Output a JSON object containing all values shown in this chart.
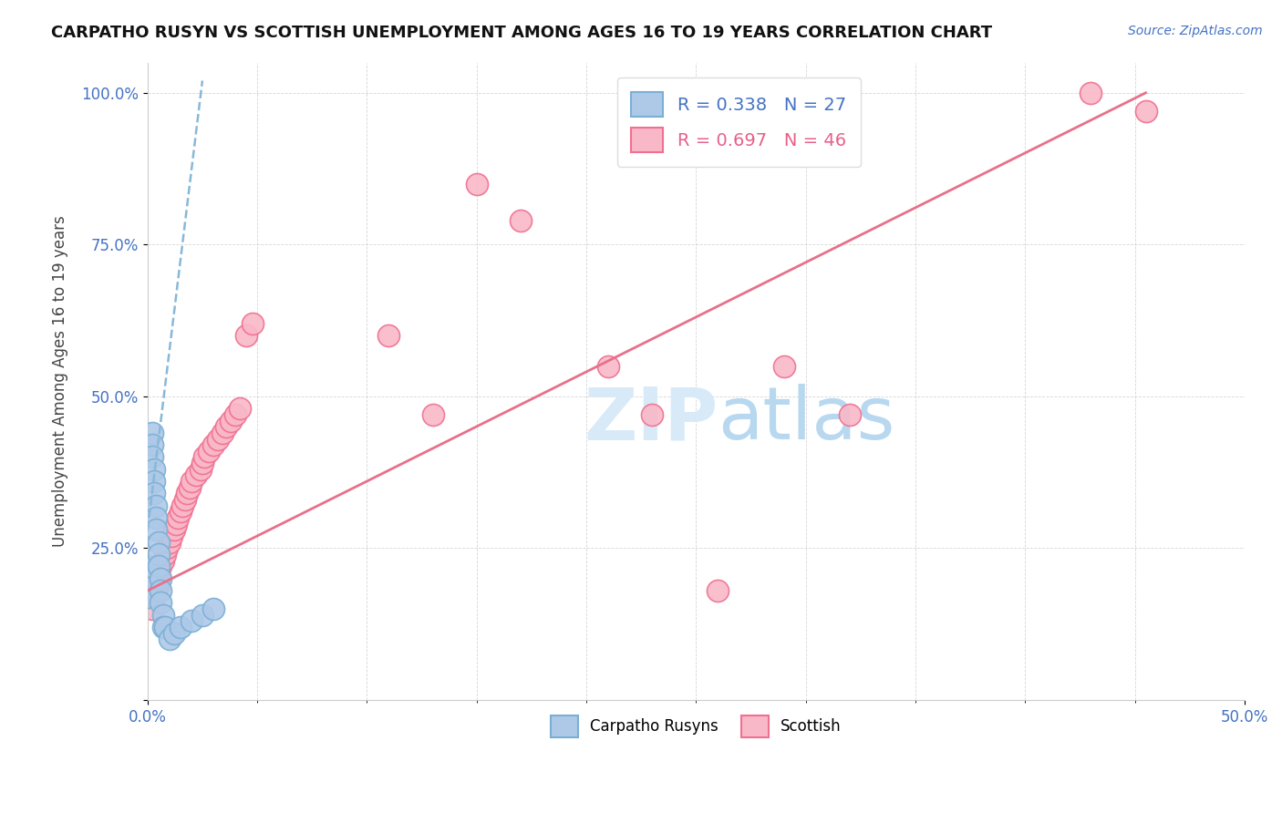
{
  "title": "CARPATHO RUSYN VS SCOTTISH UNEMPLOYMENT AMONG AGES 16 TO 19 YEARS CORRELATION CHART",
  "source_text": "Source: ZipAtlas.com",
  "xmin": 0.0,
  "xmax": 0.5,
  "ymin": 0.0,
  "ymax": 1.05,
  "blue_R": 0.338,
  "blue_N": 27,
  "pink_R": 0.697,
  "pink_N": 46,
  "blue_color": "#aec9e8",
  "pink_color": "#f9b8c8",
  "blue_edge": "#7aafd4",
  "pink_edge": "#f07090",
  "blue_trend_color": "#88b8d8",
  "pink_trend_color": "#e8708a",
  "legend_blue_text_color": "#4472c4",
  "legend_pink_text_color": "#e8608a",
  "watermark_color": "#d8eaf8",
  "blue_dots": [
    [
      0.0,
      0.17
    ],
    [
      0.0,
      0.2
    ],
    [
      0.0,
      0.22
    ],
    [
      0.002,
      0.44
    ],
    [
      0.002,
      0.42
    ],
    [
      0.002,
      0.4
    ],
    [
      0.003,
      0.38
    ],
    [
      0.003,
      0.36
    ],
    [
      0.003,
      0.34
    ],
    [
      0.004,
      0.32
    ],
    [
      0.004,
      0.3
    ],
    [
      0.004,
      0.28
    ],
    [
      0.005,
      0.26
    ],
    [
      0.005,
      0.24
    ],
    [
      0.005,
      0.22
    ],
    [
      0.006,
      0.2
    ],
    [
      0.006,
      0.18
    ],
    [
      0.006,
      0.16
    ],
    [
      0.007,
      0.14
    ],
    [
      0.007,
      0.12
    ],
    [
      0.008,
      0.12
    ],
    [
      0.01,
      0.1
    ],
    [
      0.012,
      0.11
    ],
    [
      0.015,
      0.12
    ],
    [
      0.02,
      0.13
    ],
    [
      0.025,
      0.14
    ],
    [
      0.03,
      0.15
    ]
  ],
  "pink_dots": [
    [
      0.0,
      0.17
    ],
    [
      0.002,
      0.15
    ],
    [
      0.003,
      0.17
    ],
    [
      0.004,
      0.18
    ],
    [
      0.005,
      0.19
    ],
    [
      0.005,
      0.21
    ],
    [
      0.006,
      0.22
    ],
    [
      0.007,
      0.23
    ],
    [
      0.008,
      0.24
    ],
    [
      0.009,
      0.25
    ],
    [
      0.01,
      0.26
    ],
    [
      0.011,
      0.27
    ],
    [
      0.012,
      0.28
    ],
    [
      0.013,
      0.29
    ],
    [
      0.014,
      0.3
    ],
    [
      0.015,
      0.31
    ],
    [
      0.016,
      0.32
    ],
    [
      0.017,
      0.33
    ],
    [
      0.018,
      0.34
    ],
    [
      0.019,
      0.35
    ],
    [
      0.02,
      0.36
    ],
    [
      0.022,
      0.37
    ],
    [
      0.024,
      0.38
    ],
    [
      0.025,
      0.39
    ],
    [
      0.026,
      0.4
    ],
    [
      0.028,
      0.41
    ],
    [
      0.03,
      0.42
    ],
    [
      0.032,
      0.43
    ],
    [
      0.034,
      0.44
    ],
    [
      0.036,
      0.45
    ],
    [
      0.038,
      0.46
    ],
    [
      0.04,
      0.47
    ],
    [
      0.042,
      0.48
    ],
    [
      0.045,
      0.6
    ],
    [
      0.048,
      0.62
    ],
    [
      0.11,
      0.6
    ],
    [
      0.13,
      0.47
    ],
    [
      0.15,
      0.85
    ],
    [
      0.17,
      0.79
    ],
    [
      0.21,
      0.55
    ],
    [
      0.23,
      0.47
    ],
    [
      0.26,
      0.18
    ],
    [
      0.29,
      0.55
    ],
    [
      0.32,
      0.47
    ],
    [
      0.43,
      1.0
    ],
    [
      0.455,
      0.97
    ]
  ],
  "blue_trend_x": [
    0.0,
    0.025
  ],
  "blue_trend_y": [
    0.28,
    1.02
  ],
  "pink_trend_x": [
    0.0,
    0.455
  ],
  "pink_trend_y": [
    0.18,
    1.0
  ]
}
